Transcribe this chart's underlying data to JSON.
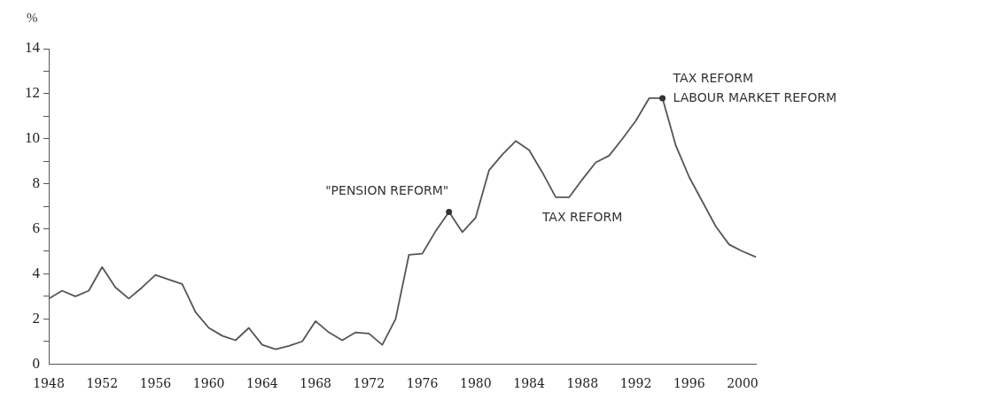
{
  "chart_data": {
    "type": "line",
    "ylabel": "%",
    "x": [
      1948,
      1949,
      1950,
      1951,
      1952,
      1953,
      1954,
      1955,
      1956,
      1957,
      1958,
      1959,
      1960,
      1961,
      1962,
      1963,
      1964,
      1965,
      1966,
      1967,
      1968,
      1969,
      1970,
      1971,
      1972,
      1973,
      1974,
      1975,
      1976,
      1977,
      1978,
      1979,
      1980,
      1981,
      1982,
      1983,
      1984,
      1985,
      1986,
      1987,
      1988,
      1989,
      1990,
      1991,
      1992,
      1993,
      1994,
      1995,
      1996,
      1997,
      1998,
      1999,
      2000,
      2001
    ],
    "series": [
      {
        "color": "#555555",
        "values": [
          2.9,
          3.25,
          3.0,
          3.25,
          4.3,
          3.4,
          2.9,
          3.4,
          3.95,
          3.75,
          3.55,
          2.3,
          1.6,
          1.25,
          1.05,
          1.6,
          0.85,
          0.65,
          0.8,
          1.0,
          1.9,
          1.4,
          1.05,
          1.4,
          1.35,
          0.85,
          2.0,
          4.85,
          4.9,
          5.9,
          6.75,
          5.85,
          6.5,
          8.6,
          9.3,
          9.9,
          9.5,
          8.5,
          7.4,
          7.4,
          8.2,
          8.95,
          9.25,
          10.0,
          10.8,
          11.8,
          11.8,
          9.7,
          8.3,
          7.2,
          6.1,
          5.3,
          5.0,
          4.75
        ]
      }
    ],
    "xlim": [
      1948,
      2001
    ],
    "xticks": [
      1948,
      1952,
      1956,
      1960,
      1964,
      1968,
      1972,
      1976,
      1980,
      1984,
      1988,
      1992,
      1996,
      2000
    ],
    "ylim": [
      0,
      14
    ],
    "yticks": [
      0,
      {
        "value": 1,
        "label": null
      },
      2,
      {
        "value": 3,
        "label": null
      },
      4,
      {
        "value": 5,
        "label": null
      },
      6,
      {
        "value": 7,
        "label": null
      },
      8,
      {
        "value": 9,
        "label": null
      },
      10,
      {
        "value": 11,
        "label": null
      },
      12,
      {
        "value": 13,
        "label": null
      },
      14
    ],
    "grid": false,
    "legend": false,
    "marker": "none",
    "line_style": "solid",
    "annotations": [
      {
        "text": "\"PENSION REFORM\"",
        "x": 1978,
        "y": 6.75
      },
      {
        "text": "TAX REFORM",
        "x": 1986,
        "y": 7.4
      },
      {
        "text": "TAX REFORM",
        "x": 1994,
        "y": 11.8
      },
      {
        "text": "LABOUR MARKET REFORM",
        "x": 1994,
        "y": 11.8
      }
    ]
  }
}
